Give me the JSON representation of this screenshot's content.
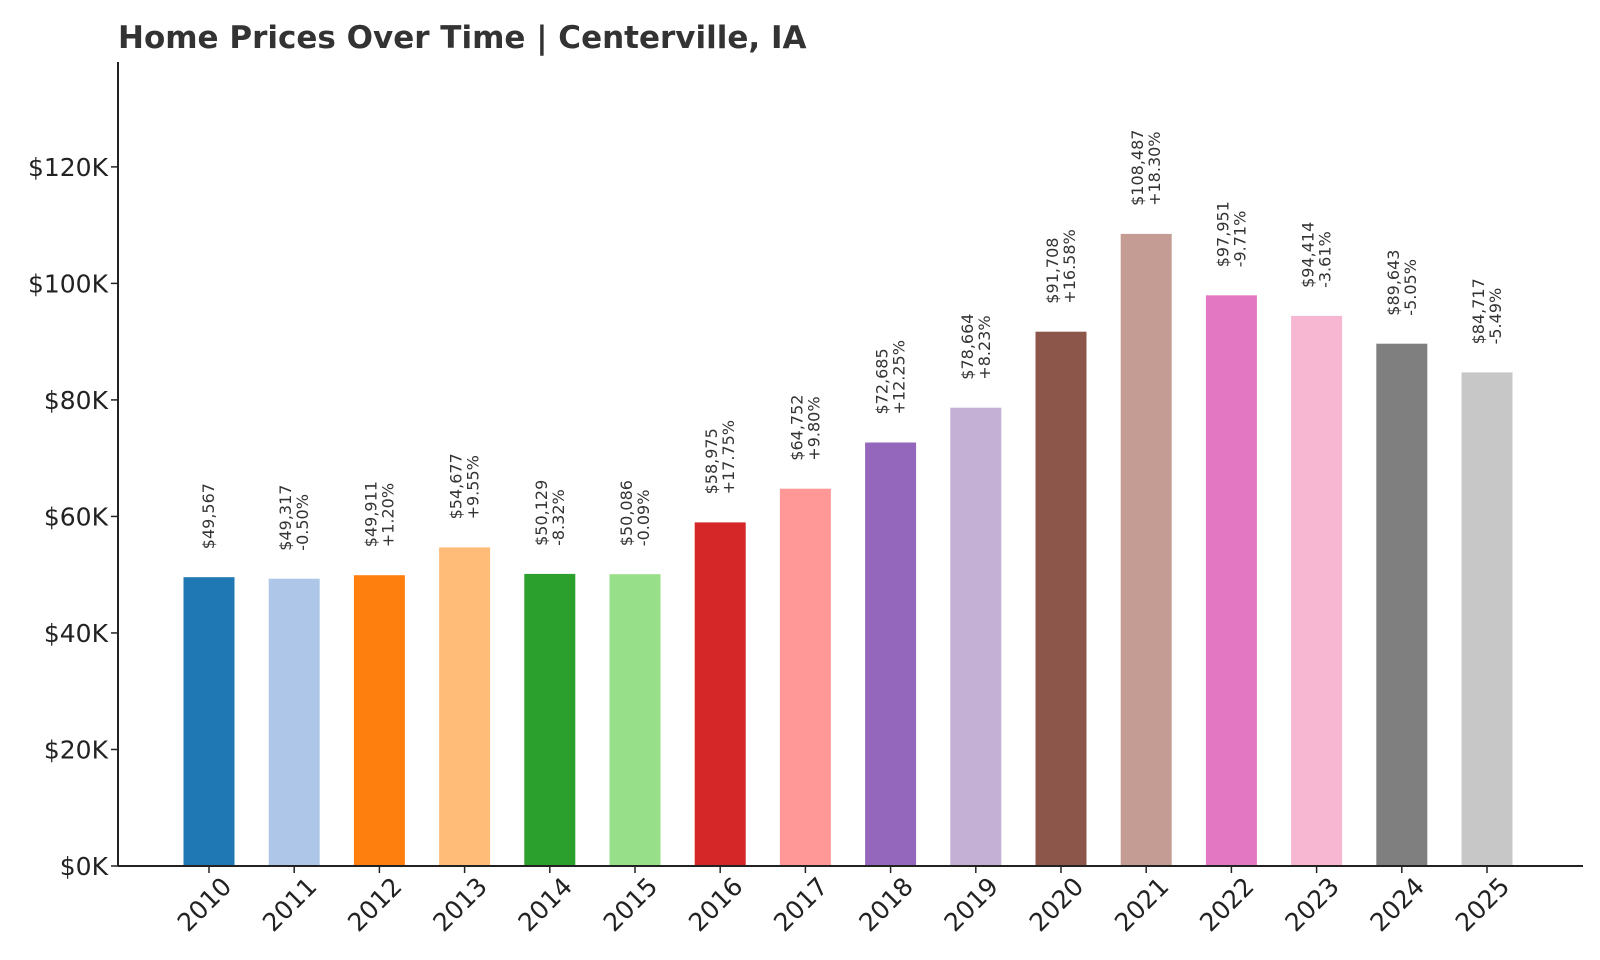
{
  "chart_data": {
    "type": "bar",
    "title": "Home Prices Over Time | Centerville, IA",
    "xlabel": "",
    "ylabel": "",
    "categories": [
      "2010",
      "2011",
      "2012",
      "2013",
      "2014",
      "2015",
      "2016",
      "2017",
      "2018",
      "2019",
      "2020",
      "2021",
      "2022",
      "2023",
      "2024",
      "2025"
    ],
    "values": [
      49567,
      49317,
      49911,
      54677,
      50129,
      50086,
      58975,
      64752,
      72685,
      78664,
      91708,
      108487,
      97951,
      94414,
      89643,
      84717
    ],
    "value_labels": [
      "$49,567",
      "$49,317",
      "$49,911",
      "$54,677",
      "$50,129",
      "$50,086",
      "$58,975",
      "$64,752",
      "$72,685",
      "$78,664",
      "$91,708",
      "$108,487",
      "$97,951",
      "$94,414",
      "$89,643",
      "$84,717"
    ],
    "change_labels": [
      "",
      "-0.50%",
      "+1.20%",
      "+9.55%",
      "-8.32%",
      "-0.09%",
      "+17.75%",
      "+9.80%",
      "+12.25%",
      "+8.23%",
      "+16.58%",
      "+18.30%",
      "-9.71%",
      "-3.61%",
      "-5.05%",
      "-5.49%"
    ],
    "colors": [
      "#1f77b4",
      "#aec7e8",
      "#ff7f0e",
      "#ffbb78",
      "#2ca02c",
      "#98df8a",
      "#d62728",
      "#ff9896",
      "#9467bd",
      "#c5b0d5",
      "#8c564b",
      "#c49c94",
      "#e377c2",
      "#f7b6d2",
      "#7f7f7f",
      "#c7c7c7"
    ],
    "yticks": [
      0,
      20000,
      40000,
      60000,
      80000,
      100000,
      120000
    ],
    "ytick_labels": [
      "$0K",
      "$20K",
      "$40K",
      "$60K",
      "$80K",
      "$100K",
      "$120K"
    ],
    "ylim": [
      0,
      138000
    ],
    "grid": false,
    "legend": "none"
  }
}
